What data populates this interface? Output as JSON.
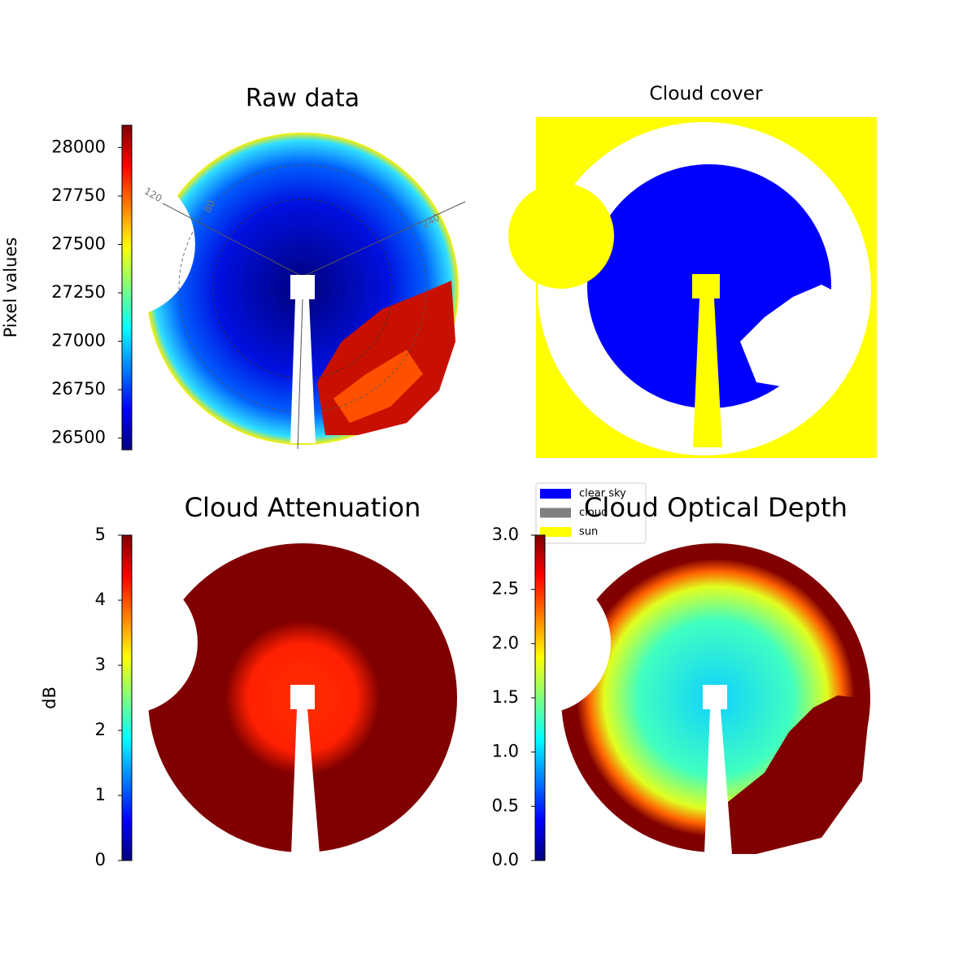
{
  "chart_data": [
    {
      "type": "image",
      "title": "Raw data",
      "colormap": "jet",
      "colorbar": {
        "label": "Pixel values",
        "lim": [
          26440,
          28115
        ],
        "ticks": [
          26500,
          26750,
          27000,
          27250,
          27500,
          27750,
          28000
        ]
      },
      "annotations": [
        "120",
        "80",
        "240"
      ]
    },
    {
      "type": "image",
      "title": "Cloud cover",
      "legend": [
        {
          "name": "clear sky",
          "color": "#0000ff"
        },
        {
          "name": "cloud",
          "color": "#808080"
        },
        {
          "name": "sun",
          "color": "#ffff00"
        }
      ]
    },
    {
      "type": "image",
      "title": "Cloud Attenuation",
      "colormap": "jet",
      "colorbar": {
        "label": "dB",
        "lim": [
          0,
          5
        ],
        "ticks": [
          0,
          1,
          2,
          3,
          4,
          5
        ]
      }
    },
    {
      "type": "image",
      "title": "Cloud Optical Depth",
      "colormap": "jet",
      "colorbar": {
        "lim": [
          0,
          3
        ],
        "ticks": [
          {
            "value": 0,
            "label": "0.0"
          },
          {
            "value": 0.5,
            "label": "0.5"
          },
          {
            "value": 1,
            "label": "1.0"
          },
          {
            "value": 1.5,
            "label": "1.5"
          },
          {
            "value": 2,
            "label": "2.0"
          },
          {
            "value": 2.5,
            "label": "2.5"
          },
          {
            "value": 3,
            "label": "3.0"
          }
        ]
      }
    }
  ]
}
